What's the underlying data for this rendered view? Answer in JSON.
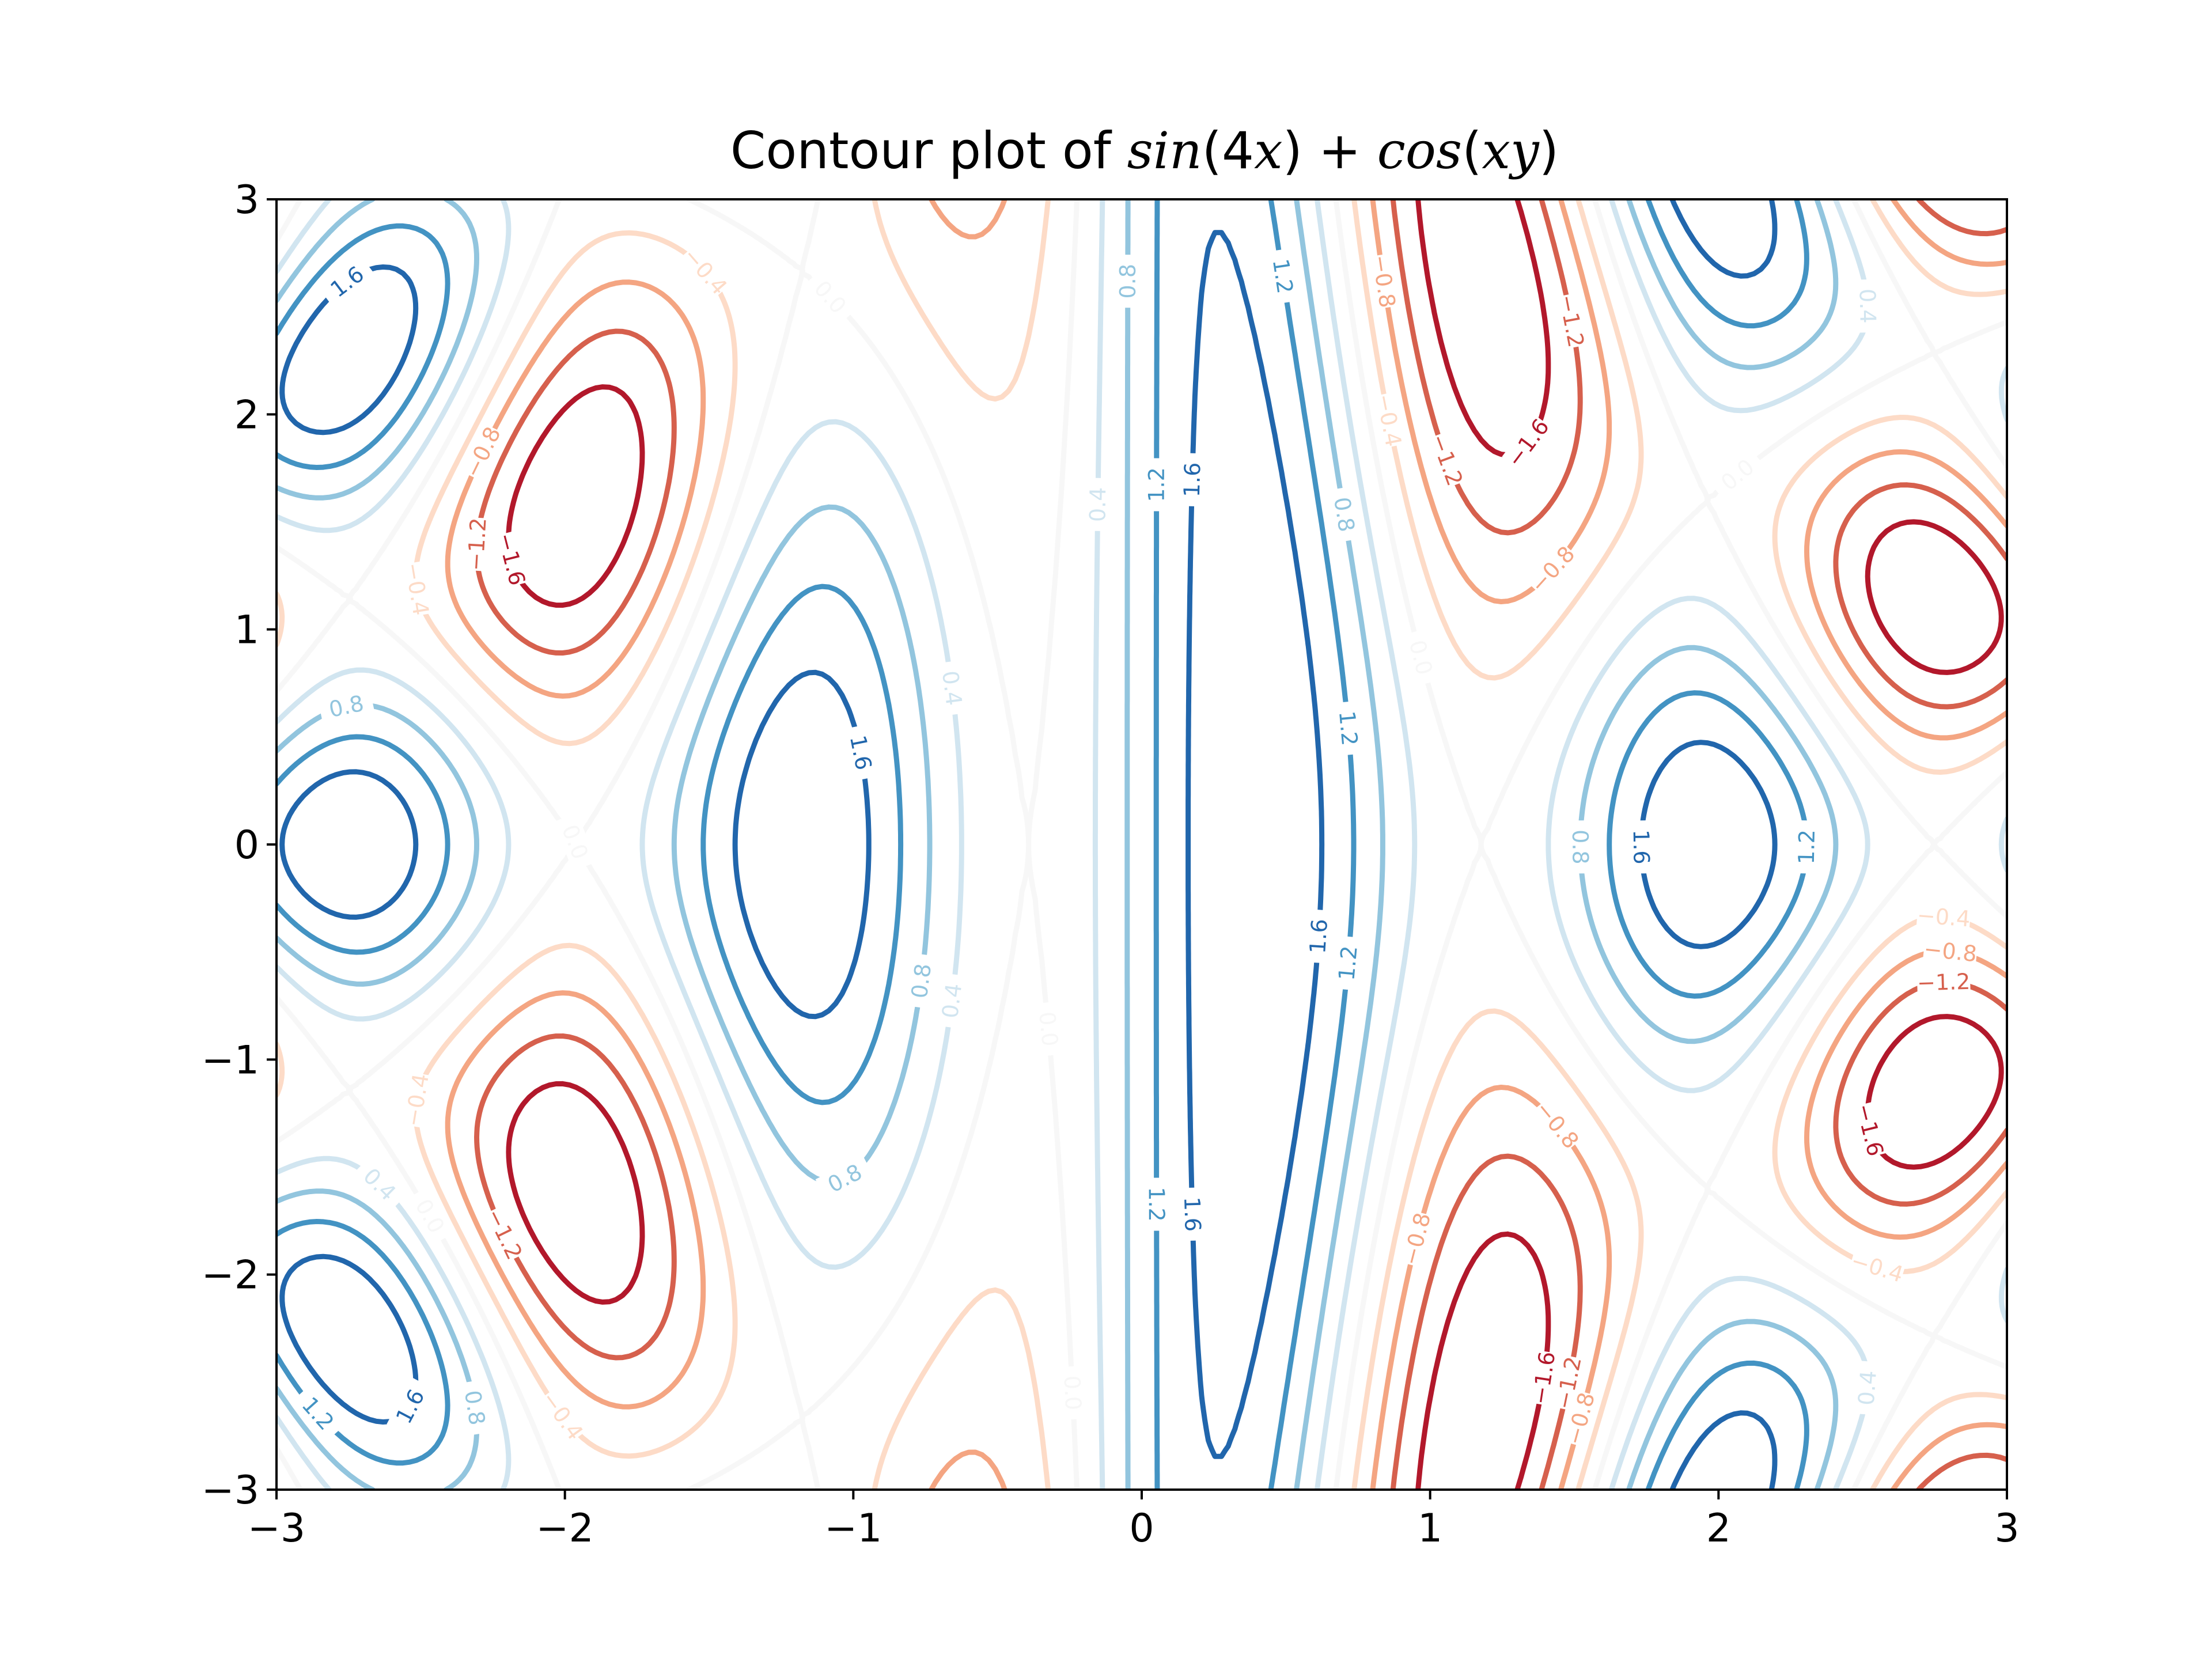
{
  "chart_data": {
    "type": "contour",
    "title": "Contour plot of sin(4x) + cos(xy)",
    "title_parts": [
      "Contour plot of ",
      "sin",
      "(4",
      "x",
      ") + ",
      "cos",
      "(",
      "xy",
      ")"
    ],
    "function": "sin(4x) + cos(xy)",
    "xlim": [
      -3,
      3
    ],
    "ylim": [
      -3,
      3
    ],
    "x_ticks": [
      -3,
      -2,
      -1,
      0,
      1,
      2,
      3
    ],
    "y_ticks": [
      -3,
      -2,
      -1,
      0,
      1,
      2,
      3
    ],
    "x_tick_labels": [
      "−3",
      "−2",
      "−1",
      "0",
      "1",
      "2",
      "3"
    ],
    "y_tick_labels": [
      "−3",
      "−2",
      "−1",
      "0",
      "1",
      "2",
      "3"
    ],
    "levels": [
      -1.6,
      -1.2,
      -0.8,
      -0.4,
      0.0,
      0.4,
      0.8,
      1.2,
      1.6
    ],
    "level_labels": [
      "−1.6",
      "−1.2",
      "−0.8",
      "−0.4",
      "0.0",
      "0.4",
      "0.8",
      "1.2",
      "1.6"
    ],
    "colormap": "RdBu",
    "level_colors": [
      "#b2182b",
      "#d6604d",
      "#f4a582",
      "#fddbc7",
      "#f7f7f7",
      "#d1e5f0",
      "#92c5de",
      "#4393c3",
      "#2166ac"
    ],
    "grid": false,
    "legend": "none"
  }
}
